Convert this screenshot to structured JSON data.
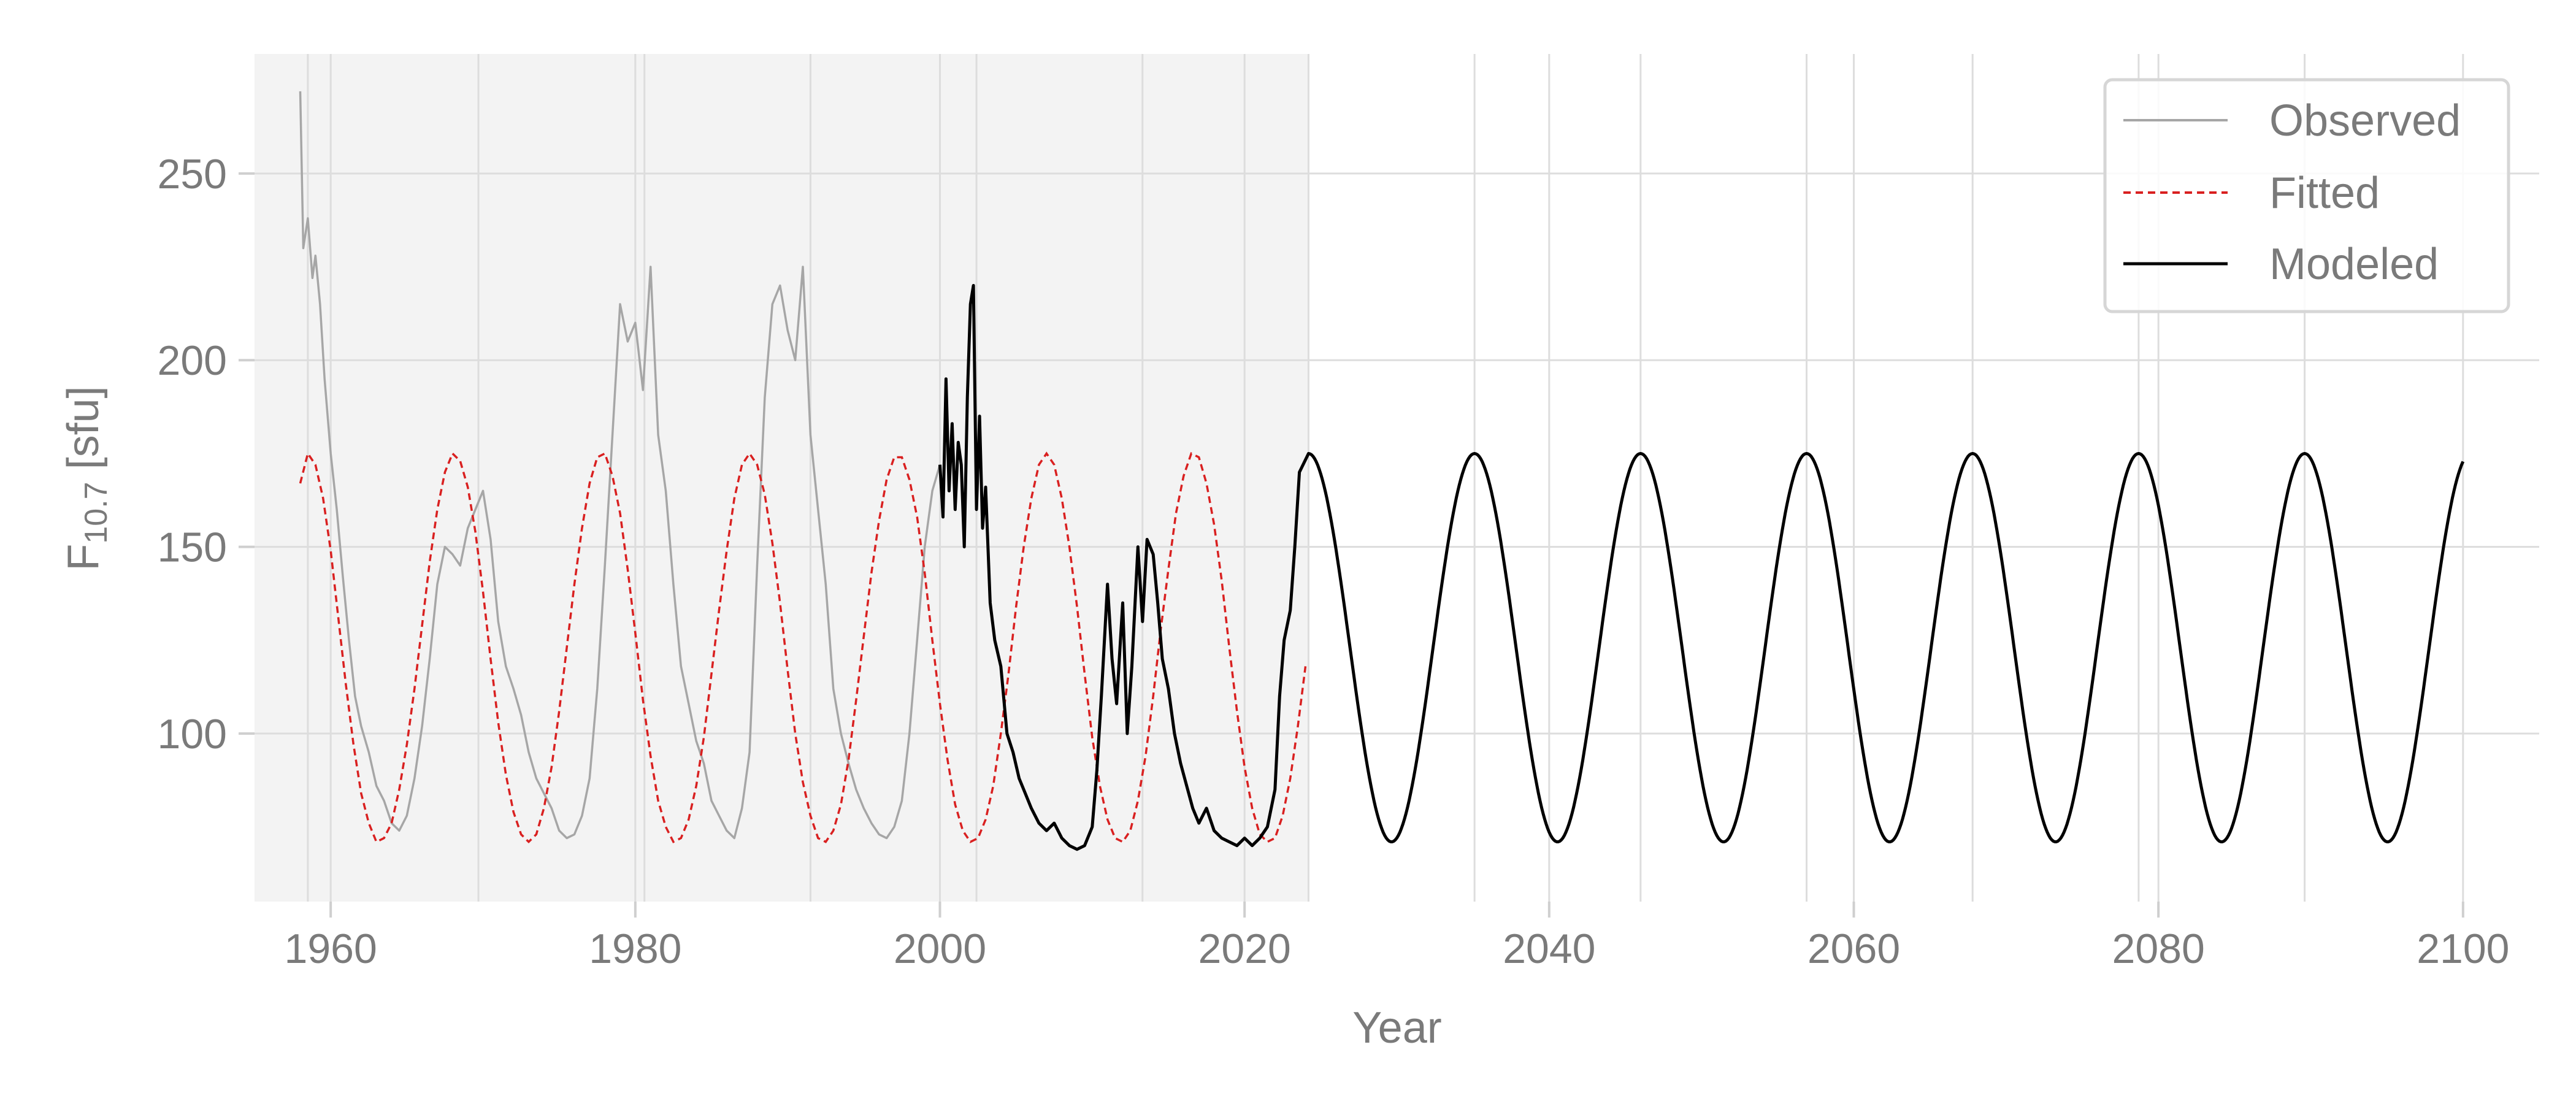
{
  "chart_data": {
    "type": "line",
    "title": "",
    "xlabel": "Year",
    "ylabel": {
      "main": "F",
      "sub": "10.7",
      "unit": " [sfu]"
    },
    "xlim": [
      1955,
      2105
    ],
    "ylim": [
      55,
      282
    ],
    "xticks": [
      1960,
      1980,
      2000,
      2020,
      2040,
      2060,
      2080,
      2100
    ],
    "yticks": [
      100,
      150,
      200,
      250
    ],
    "grid": true,
    "legend_position": "top-right",
    "shaded_region": {
      "x_start": 1955,
      "x_end": 2024.2,
      "color": "#f3f3f3"
    },
    "cycle_markers": [
      1958.5,
      1969.7,
      1980.6,
      1991.5,
      2002.4,
      2013.3,
      2024.2,
      2035.1,
      2046.0,
      2056.9,
      2067.8,
      2078.7,
      2089.6
    ],
    "series": [
      {
        "name": "Observed",
        "color": "#a6a6a6",
        "style": "solid",
        "x": [
          1958.0,
          1958.2,
          1958.5,
          1958.8,
          1959.0,
          1959.3,
          1959.6,
          1960.0,
          1960.4,
          1960.8,
          1961.2,
          1961.6,
          1962.0,
          1962.5,
          1963.0,
          1963.5,
          1964.0,
          1964.5,
          1965.0,
          1965.5,
          1966.0,
          1966.5,
          1967.0,
          1967.5,
          1968.0,
          1968.5,
          1969.0,
          1969.5,
          1970.0,
          1970.5,
          1971.0,
          1971.5,
          1972.0,
          1972.5,
          1973.0,
          1973.5,
          1974.0,
          1974.5,
          1975.0,
          1975.5,
          1976.0,
          1976.5,
          1977.0,
          1977.5,
          1978.0,
          1978.5,
          1979.0,
          1979.5,
          1980.0,
          1980.5,
          1981.0,
          1981.5,
          1982.0,
          1982.5,
          1983.0,
          1983.5,
          1984.0,
          1984.5,
          1985.0,
          1985.5,
          1986.0,
          1986.5,
          1987.0,
          1987.5,
          1988.0,
          1988.5,
          1989.0,
          1989.5,
          1990.0,
          1990.5,
          1991.0,
          1991.5,
          1992.0,
          1992.5,
          1993.0,
          1993.5,
          1994.0,
          1994.5,
          1995.0,
          1995.5,
          1996.0,
          1996.5,
          1997.0,
          1997.5,
          1998.0,
          1998.5,
          1999.0,
          1999.5,
          2000.0
        ],
        "values": [
          272,
          230,
          238,
          222,
          228,
          215,
          195,
          175,
          160,
          142,
          125,
          110,
          102,
          95,
          86,
          82,
          76,
          74,
          78,
          88,
          102,
          120,
          140,
          150,
          148,
          145,
          155,
          160,
          165,
          152,
          130,
          118,
          112,
          105,
          95,
          88,
          84,
          80,
          74,
          72,
          73,
          78,
          88,
          112,
          145,
          180,
          215,
          205,
          210,
          192,
          225,
          180,
          165,
          140,
          118,
          108,
          98,
          92,
          82,
          78,
          74,
          72,
          80,
          95,
          145,
          190,
          215,
          220,
          208,
          200,
          225,
          180,
          160,
          140,
          112,
          100,
          92,
          85,
          80,
          76,
          73,
          72,
          75,
          82,
          100,
          125,
          150,
          165,
          172
        ]
      },
      {
        "name": "Fitted",
        "color": "#d92020",
        "style": "dashed",
        "x": [
          1958.0,
          1958.5,
          1959.0,
          1959.5,
          1960.0,
          1960.5,
          1961.0,
          1961.5,
          1962.0,
          1962.5,
          1963.0,
          1963.5,
          1964.0,
          1964.5,
          1965.0,
          1965.5,
          1966.0,
          1966.5,
          1967.0,
          1967.5,
          1968.0,
          1968.5,
          1969.0,
          1969.5,
          1970.0,
          1970.5,
          1971.0,
          1971.5,
          1972.0,
          1972.5,
          1973.0,
          1973.5,
          1974.0,
          1974.5,
          1975.0,
          1975.5,
          1976.0,
          1976.5,
          1977.0,
          1977.5,
          1978.0,
          1978.5,
          1979.0,
          1979.5,
          1980.0,
          1980.5,
          1981.0,
          1981.5,
          1982.0,
          1982.5,
          1983.0,
          1983.5,
          1984.0,
          1984.5,
          1985.0,
          1985.5,
          1986.0,
          1986.5,
          1987.0,
          1987.5,
          1988.0,
          1988.5,
          1989.0,
          1989.5,
          1990.0,
          1990.5,
          1991.0,
          1991.5,
          1992.0,
          1992.5,
          1993.0,
          1993.5,
          1994.0,
          1994.5,
          1995.0,
          1995.5,
          1996.0,
          1996.5,
          1997.0,
          1997.5,
          1998.0,
          1998.5,
          1999.0,
          1999.5,
          2000.0,
          2000.5,
          2001.0,
          2001.5,
          2002.0,
          2002.5,
          2003.0,
          2003.5,
          2004.0,
          2004.5,
          2005.0,
          2005.5,
          2006.0,
          2006.5,
          2007.0,
          2007.5,
          2008.0,
          2008.5,
          2009.0,
          2009.5,
          2010.0,
          2010.5,
          2011.0,
          2011.5,
          2012.0,
          2012.5,
          2013.0,
          2013.5,
          2014.0,
          2014.5,
          2015.0,
          2015.5,
          2016.0,
          2016.5,
          2017.0,
          2017.5,
          2018.0,
          2018.5,
          2019.0,
          2019.5,
          2020.0,
          2020.5,
          2021.0,
          2021.5,
          2022.0,
          2022.5,
          2023.0,
          2023.5,
          2024.0
        ],
        "values": [
          167,
          175,
          172,
          163,
          149,
          131,
          113,
          97,
          84,
          76,
          71,
          72,
          76,
          85,
          97,
          112,
          129,
          146,
          160,
          170,
          175,
          173,
          166,
          154,
          138,
          120,
          103,
          89,
          79,
          73,
          71,
          73,
          80,
          91,
          106,
          123,
          140,
          155,
          167,
          174,
          175,
          169,
          159,
          144,
          127,
          109,
          94,
          82,
          75,
          71,
          72,
          77,
          86,
          99,
          116,
          133,
          149,
          163,
          172,
          175,
          172,
          164,
          151,
          135,
          117,
          100,
          87,
          78,
          72,
          71,
          74,
          81,
          93,
          109,
          126,
          143,
          157,
          168,
          174,
          174,
          168,
          158,
          143,
          125,
          108,
          93,
          81,
          74,
          71,
          72,
          77,
          86,
          100,
          116,
          134,
          150,
          163,
          172,
          175,
          172,
          163,
          150,
          134,
          116,
          99,
          86,
          77,
          72,
          71,
          74,
          82,
          94,
          110,
          128,
          144,
          159,
          169,
          175,
          174,
          167,
          156,
          141,
          123,
          106,
          91,
          80,
          73,
          71,
          72,
          78,
          88,
          102,
          118
        ]
      },
      {
        "name": "Modeled",
        "color": "#000000",
        "style": "solid",
        "x": [
          2000.0,
          2000.2,
          2000.4,
          2000.6,
          2000.8,
          2001.0,
          2001.2,
          2001.4,
          2001.6,
          2001.8,
          2002.0,
          2002.2,
          2002.4,
          2002.6,
          2002.8,
          2003.0,
          2003.3,
          2003.6,
          2004.0,
          2004.4,
          2004.8,
          2005.2,
          2005.6,
          2006.0,
          2006.5,
          2007.0,
          2007.5,
          2008.0,
          2008.5,
          2009.0,
          2009.5,
          2010.0,
          2010.3,
          2010.6,
          2011.0,
          2011.3,
          2011.6,
          2012.0,
          2012.3,
          2012.6,
          2013.0,
          2013.3,
          2013.6,
          2014.0,
          2014.3,
          2014.6,
          2015.0,
          2015.4,
          2015.8,
          2016.2,
          2016.6,
          2017.0,
          2017.5,
          2018.0,
          2018.5,
          2019.0,
          2019.5,
          2020.0,
          2020.5,
          2021.0,
          2021.5,
          2022.0,
          2022.3,
          2022.6,
          2023.0,
          2023.3,
          2023.6,
          2024.2
        ],
        "values": [
          172,
          158,
          195,
          165,
          183,
          160,
          178,
          172,
          150,
          190,
          215,
          220,
          160,
          185,
          155,
          166,
          135,
          125,
          118,
          100,
          95,
          88,
          84,
          80,
          76,
          74,
          76,
          72,
          70,
          69,
          70,
          75,
          90,
          110,
          140,
          120,
          108,
          135,
          100,
          118,
          150,
          130,
          152,
          148,
          135,
          120,
          112,
          100,
          92,
          86,
          80,
          76,
          80,
          74,
          72,
          71,
          70,
          72,
          70,
          72,
          75,
          85,
          110,
          125,
          133,
          150,
          170,
          175
        ],
        "model_amplitude": {
          "min": 71,
          "max": 175,
          "period_years": 10.9,
          "phase_peak_year": 2024.2,
          "end_year": 2100
        }
      }
    ]
  },
  "legend": {
    "items": [
      {
        "label": "Observed",
        "color": "#a6a6a6",
        "style": "solid"
      },
      {
        "label": "Fitted",
        "color": "#d92020",
        "style": "dashed"
      },
      {
        "label": "Modeled",
        "color": "#000000",
        "style": "solid"
      }
    ]
  }
}
